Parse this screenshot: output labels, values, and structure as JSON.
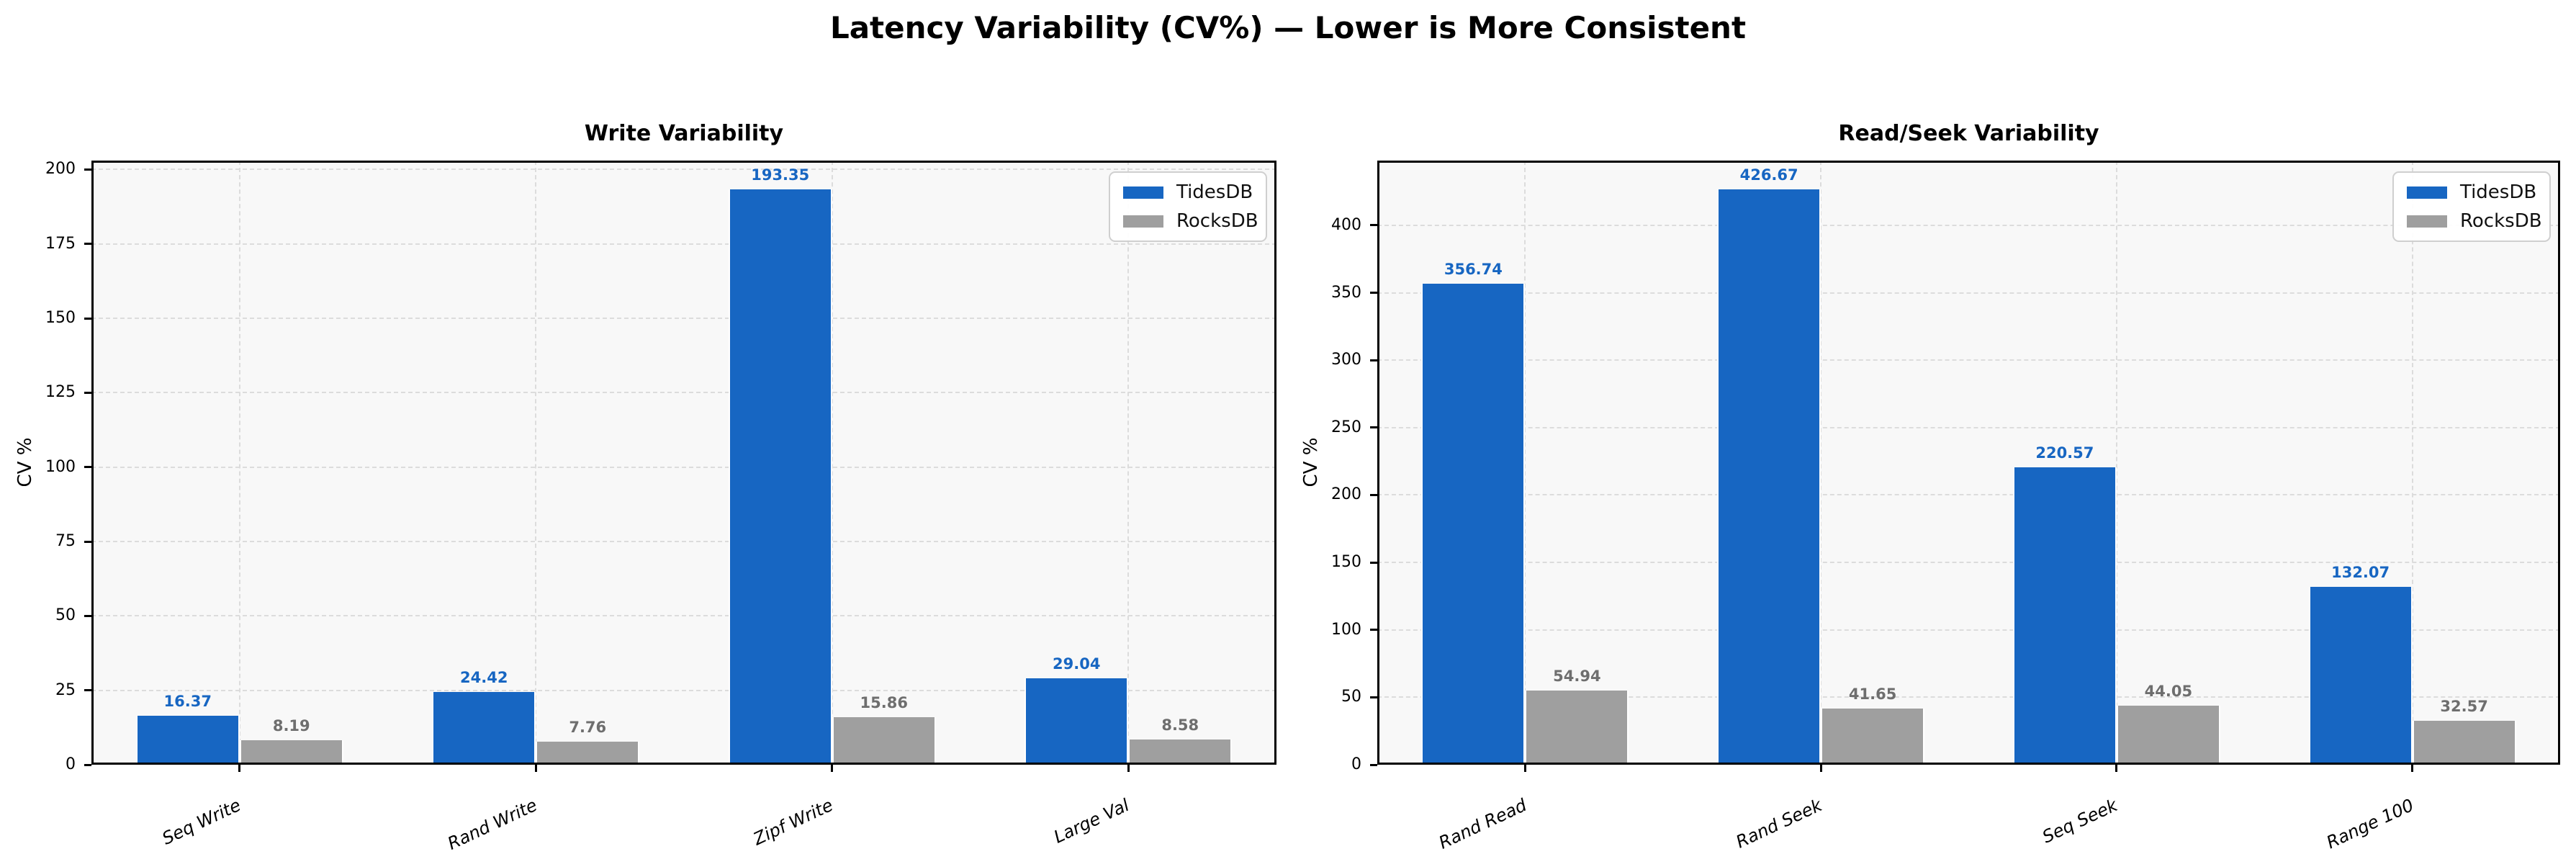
{
  "suptitle": "Latency Variability (CV%) — Lower is More Consistent",
  "colors": {
    "tidesdb_bar": "#1766c2",
    "rocksdb_bar": "#9f9f9f",
    "tidesdb_value_label": "#1766c2",
    "rocksdb_value_label": "#6e6e6e",
    "plot_background": "#f8f8f8",
    "figure_background": "#ffffff",
    "gridline": "#dcdcdc",
    "spine": "#000000"
  },
  "chart_data": [
    {
      "type": "bar",
      "title": "Write Variability",
      "ylabel": "CV %",
      "categories": [
        "Seq Write",
        "Rand Write",
        "Zipf Write",
        "Large Val"
      ],
      "series": [
        {
          "name": "TidesDB",
          "color": "#1766c2",
          "label_color": "#1766c2",
          "values": [
            16.37,
            24.42,
            193.35,
            29.04
          ]
        },
        {
          "name": "RocksDB",
          "color": "#9f9f9f",
          "label_color": "#6e6e6e",
          "values": [
            8.19,
            7.76,
            15.86,
            8.58
          ]
        }
      ],
      "yticks": [
        0,
        25,
        50,
        75,
        100,
        125,
        150,
        175,
        200
      ],
      "ylim": [
        0,
        203
      ],
      "grid": true,
      "legend_position": "upper right",
      "legend_entries": [
        "TidesDB",
        "RocksDB"
      ]
    },
    {
      "type": "bar",
      "title": "Read/Seek Variability",
      "ylabel": "CV %",
      "categories": [
        "Rand Read",
        "Rand Seek",
        "Seq Seek",
        "Range 100"
      ],
      "series": [
        {
          "name": "TidesDB",
          "color": "#1766c2",
          "label_color": "#1766c2",
          "values": [
            356.74,
            426.67,
            220.57,
            132.07
          ]
        },
        {
          "name": "RocksDB",
          "color": "#9f9f9f",
          "label_color": "#6e6e6e",
          "values": [
            54.94,
            41.65,
            44.05,
            32.57
          ]
        }
      ],
      "yticks": [
        0,
        50,
        100,
        150,
        200,
        250,
        300,
        350,
        400
      ],
      "ylim": [
        0,
        448
      ],
      "grid": true,
      "legend_position": "upper right",
      "legend_entries": [
        "TidesDB",
        "RocksDB"
      ]
    }
  ]
}
